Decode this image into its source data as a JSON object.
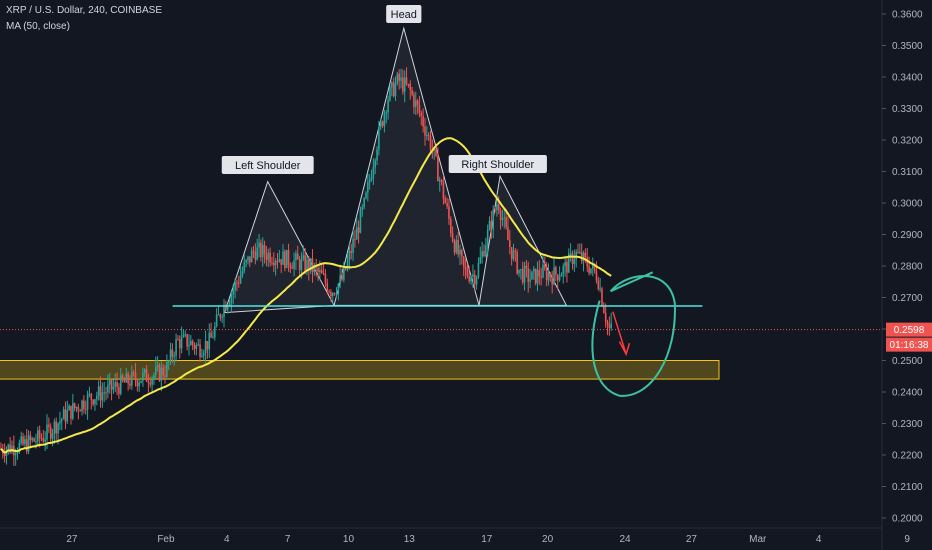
{
  "header": {
    "symbol_line": "XRP / U.S. Dollar, 240, COINBASE",
    "indicator_line": "MA (50, close)"
  },
  "chart_data": {
    "type": "candlestick",
    "symbol": "XRP / U.S. Dollar",
    "interval": "240",
    "exchange": "COINBASE",
    "ylim": [
      0.2,
      0.362
    ],
    "y_ticks": [
      "0.3600",
      "0.3500",
      "0.3400",
      "0.3300",
      "0.3200",
      "0.3100",
      "0.3000",
      "0.2900",
      "0.2800",
      "0.2700",
      "0.2600",
      "0.2500",
      "0.2400",
      "0.2300",
      "0.2200",
      "0.2100",
      "0.2000"
    ],
    "x_ticks": [
      "27",
      "Feb",
      "4",
      "7",
      "10",
      "13",
      "17",
      "20",
      "24",
      "27",
      "Mar",
      "4",
      "9"
    ],
    "price_label": "0.2598",
    "countdown_label": "01:16:38",
    "last_price": 0.2598,
    "annotations": [
      {
        "text": "Left Shoulder",
        "price": 0.3068
      },
      {
        "text": "Head",
        "price": 0.3555
      },
      {
        "text": "Right Shoulder",
        "price": 0.3085
      }
    ],
    "neckline": 0.2673,
    "support_zone": [
      0.2441,
      0.25
    ],
    "ma_series_name": "MA (50, close)",
    "colors": {
      "up": "#26a69a",
      "down": "#ef5350",
      "ma": "#f5e94a",
      "neckline": "#4fe6e0",
      "zone": "#f5c518",
      "circle": "#3cc2a3",
      "arrow": "#ff3b3b",
      "background": "#131722"
    }
  }
}
